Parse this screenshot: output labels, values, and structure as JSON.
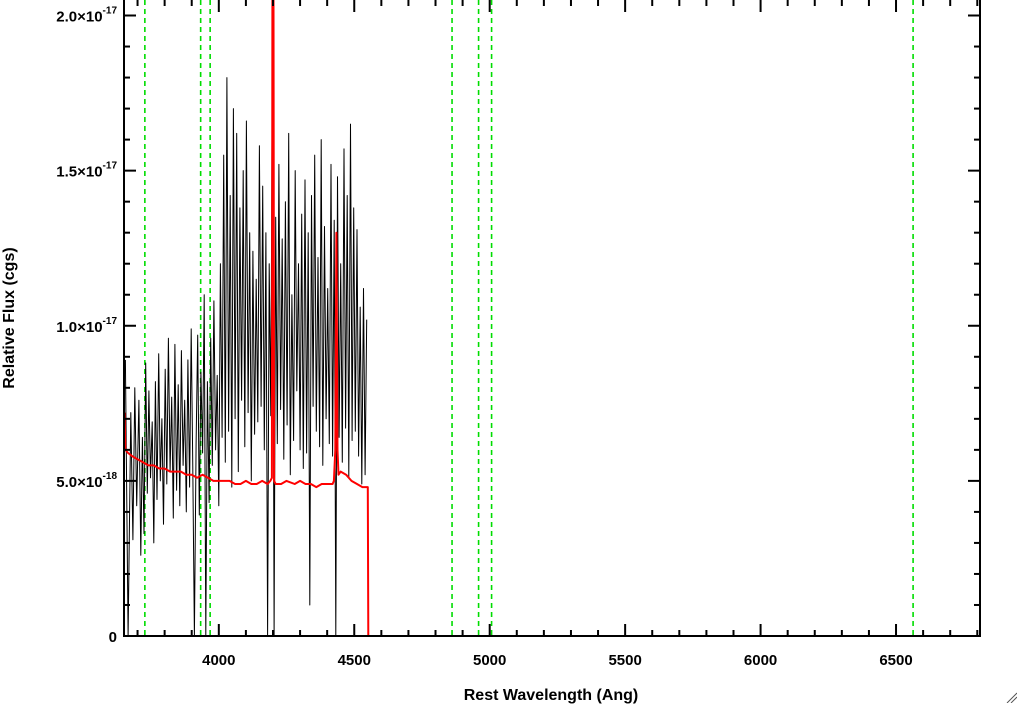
{
  "chart_data": {
    "type": "line",
    "xlabel": "Rest Wavelength (Ang)",
    "ylabel": "Relative Flux (cgs)",
    "xlim": [
      3650,
      6810
    ],
    "ylim": [
      0,
      2.05e-17
    ],
    "x_ticks": [
      {
        "value": 4000,
        "label": "4000"
      },
      {
        "value": 4500,
        "label": "4500"
      },
      {
        "value": 5000,
        "label": "5000"
      },
      {
        "value": 5500,
        "label": "5500"
      },
      {
        "value": 6000,
        "label": "6000"
      },
      {
        "value": 6500,
        "label": "6500"
      }
    ],
    "y_ticks": [
      {
        "value": 0,
        "mantissa": "0",
        "exponent": ""
      },
      {
        "value": 5e-18,
        "mantissa": "5.0×10",
        "exponent": "-18"
      },
      {
        "value": 1e-17,
        "mantissa": "1.0×10",
        "exponent": "-17"
      },
      {
        "value": 1.5e-17,
        "mantissa": "1.5×10",
        "exponent": "-17"
      },
      {
        "value": 2e-17,
        "mantissa": "2.0×10",
        "exponent": "-17"
      }
    ],
    "x_minor_step": 100,
    "y_minor_step": 1e-18,
    "vlines": [
      3727,
      3933,
      3968,
      4861,
      4959,
      5007,
      6563
    ],
    "series": [
      {
        "color": "#000000",
        "x": [
          3655,
          3665,
          3675,
          3683,
          3690,
          3697,
          3705,
          3712,
          3718,
          3724,
          3730,
          3736,
          3742,
          3748,
          3754,
          3760,
          3766,
          3772,
          3778,
          3784,
          3790,
          3796,
          3802,
          3808,
          3814,
          3820,
          3826,
          3832,
          3838,
          3844,
          3850,
          3856,
          3862,
          3868,
          3874,
          3880,
          3886,
          3892,
          3898,
          3904,
          3910,
          3916,
          3922,
          3928,
          3934,
          3940,
          3946,
          3952,
          3958,
          3964,
          3970,
          3976,
          3982,
          3988,
          3994,
          4000,
          4006,
          4012,
          4018,
          4024,
          4030,
          4036,
          4042,
          4048,
          4054,
          4060,
          4066,
          4072,
          4078,
          4084,
          4090,
          4096,
          4102,
          4108,
          4114,
          4120,
          4126,
          4132,
          4138,
          4144,
          4150,
          4156,
          4162,
          4168,
          4174,
          4180,
          4186,
          4192,
          4198,
          4204,
          4210,
          4216,
          4222,
          4228,
          4234,
          4240,
          4246,
          4252,
          4258,
          4264,
          4270,
          4276,
          4282,
          4288,
          4294,
          4300,
          4306,
          4312,
          4318,
          4324,
          4330,
          4336,
          4342,
          4348,
          4354,
          4360,
          4366,
          4372,
          4378,
          4384,
          4390,
          4396,
          4402,
          4408,
          4414,
          4420,
          4426,
          4432,
          4438,
          4444,
          4450,
          4456,
          4462,
          4468,
          4474,
          4480,
          4486,
          4492,
          4498,
          4504,
          4510,
          4516,
          4522,
          4528,
          4534,
          4540,
          4546
        ],
        "y": [
          8.9e-18,
          0,
          7.2e-18,
          3.1e-18,
          8e-18,
          4.2e-18,
          7.6e-18,
          2.6e-18,
          6.4e-18,
          3.3e-18,
          8.8e-18,
          4.6e-18,
          7.9e-18,
          5.1e-18,
          6.9e-18,
          3e-18,
          8.2e-18,
          4.4e-18,
          9.1e-18,
          5e-18,
          7e-18,
          3.6e-18,
          8.6e-18,
          4.9e-18,
          9.6e-18,
          5.3e-18,
          7.7e-18,
          3.8e-18,
          9.4e-18,
          4.7e-18,
          8.1e-18,
          4.2e-18,
          9.2e-18,
          5.5e-18,
          7.6e-18,
          4e-18,
          8.9e-18,
          4.8e-18,
          9.9e-18,
          5.4e-18,
          0,
          6.2e-18,
          9.7e-18,
          3.9e-18,
          8.5e-18,
          5.9e-18,
          1.1e-17,
          0,
          8.2e-18,
          4.3e-18,
          9.6e-18,
          5.5e-18,
          1.08e-17,
          6e-18,
          8.4e-18,
          4.2e-18,
          1.2e-17,
          6.4e-18,
          1.55e-17,
          5.6e-18,
          1.8e-17,
          6.6e-18,
          1.42e-17,
          4.8e-18,
          1.7e-17,
          7e-18,
          1.62e-17,
          5.3e-18,
          1.38e-17,
          7.6e-18,
          1.5e-17,
          6.1e-18,
          1.66e-17,
          7.2e-18,
          1.3e-17,
          5e-18,
          1.24e-17,
          6.5e-18,
          1.15e-17,
          6.9e-18,
          1.58e-17,
          7.4e-18,
          1.45e-17,
          6e-18,
          1.3e-17,
          0,
          1.2e-17,
          7.1e-18,
          1.9e-17,
          0,
          1.35e-17,
          6.2e-18,
          1.52e-17,
          7.3e-18,
          1.28e-17,
          5.7e-18,
          1.4e-17,
          6.8e-18,
          1.62e-17,
          5.2e-18,
          1.1e-17,
          6.3e-18,
          1.5e-17,
          7.9e-18,
          1.2e-17,
          6e-18,
          1.36e-17,
          5.4e-18,
          1.47e-17,
          5.9e-18,
          1.3e-17,
          1e-18,
          1.42e-17,
          7.4e-18,
          1.55e-17,
          6.6e-18,
          1.22e-17,
          6.1e-18,
          1.6e-17,
          5.5e-18,
          1.32e-17,
          7e-18,
          1.12e-17,
          6.2e-18,
          1.52e-17,
          5.8e-18,
          1.34e-17,
          0,
          1.48e-17,
          6.4e-18,
          1.2e-17,
          5.6e-18,
          1.57e-17,
          6.7e-18,
          1.42e-17,
          5.1e-18,
          1.65e-17,
          6.3e-18,
          1.38e-17,
          6.6e-18,
          1.31e-17,
          5.8e-18,
          1.06e-17,
          4.9e-18,
          1.12e-17,
          5.2e-18,
          1.02e-17
        ]
      },
      {
        "color": "#ff0000",
        "x": [
          3652,
          3655,
          3665,
          3680,
          3700,
          3720,
          3740,
          3760,
          3780,
          3800,
          3820,
          3840,
          3860,
          3880,
          3900,
          3920,
          3940,
          3960,
          3980,
          4000,
          4020,
          4040,
          4060,
          4080,
          4100,
          4120,
          4140,
          4160,
          4180,
          4190,
          4196,
          4198,
          4200,
          4202,
          4204,
          4210,
          4230,
          4250,
          4280,
          4300,
          4320,
          4340,
          4360,
          4380,
          4400,
          4420,
          4425,
          4430,
          4434,
          4438,
          4442,
          4450,
          4470,
          4490,
          4510,
          4530,
          4548,
          4550,
          4552,
          4556,
          4600,
          4800,
          5000,
          5500,
          6000,
          6500,
          6810
        ],
        "y": [
          7.2e-18,
          6e-18,
          5.9e-18,
          5.8e-18,
          5.7e-18,
          5.6e-18,
          5.5e-18,
          5.5e-18,
          5.4e-18,
          5.4e-18,
          5.3e-18,
          5.3e-18,
          5.3e-18,
          5.2e-18,
          5.2e-18,
          5.1e-18,
          5.2e-18,
          5.1e-18,
          5e-18,
          5e-18,
          5e-18,
          5e-18,
          4.9e-18,
          4.9e-18,
          5e-18,
          4.9e-18,
          4.9e-18,
          5e-18,
          4.9e-18,
          5e-18,
          5.1e-18,
          2.05e-17,
          2.05e-17,
          2.05e-17,
          5e-18,
          4.9e-18,
          4.9e-18,
          5e-18,
          4.9e-18,
          5e-18,
          4.9e-18,
          4.9e-18,
          4.8e-18,
          4.9e-18,
          4.9e-18,
          4.9e-18,
          5e-18,
          6e-18,
          1.3e-17,
          6e-18,
          5.2e-18,
          5.3e-18,
          5.2e-18,
          5e-18,
          4.9e-18,
          4.8e-18,
          4.8e-18,
          4.8e-18,
          0,
          0,
          0,
          0,
          0,
          0,
          0,
          0,
          0
        ]
      }
    ]
  }
}
